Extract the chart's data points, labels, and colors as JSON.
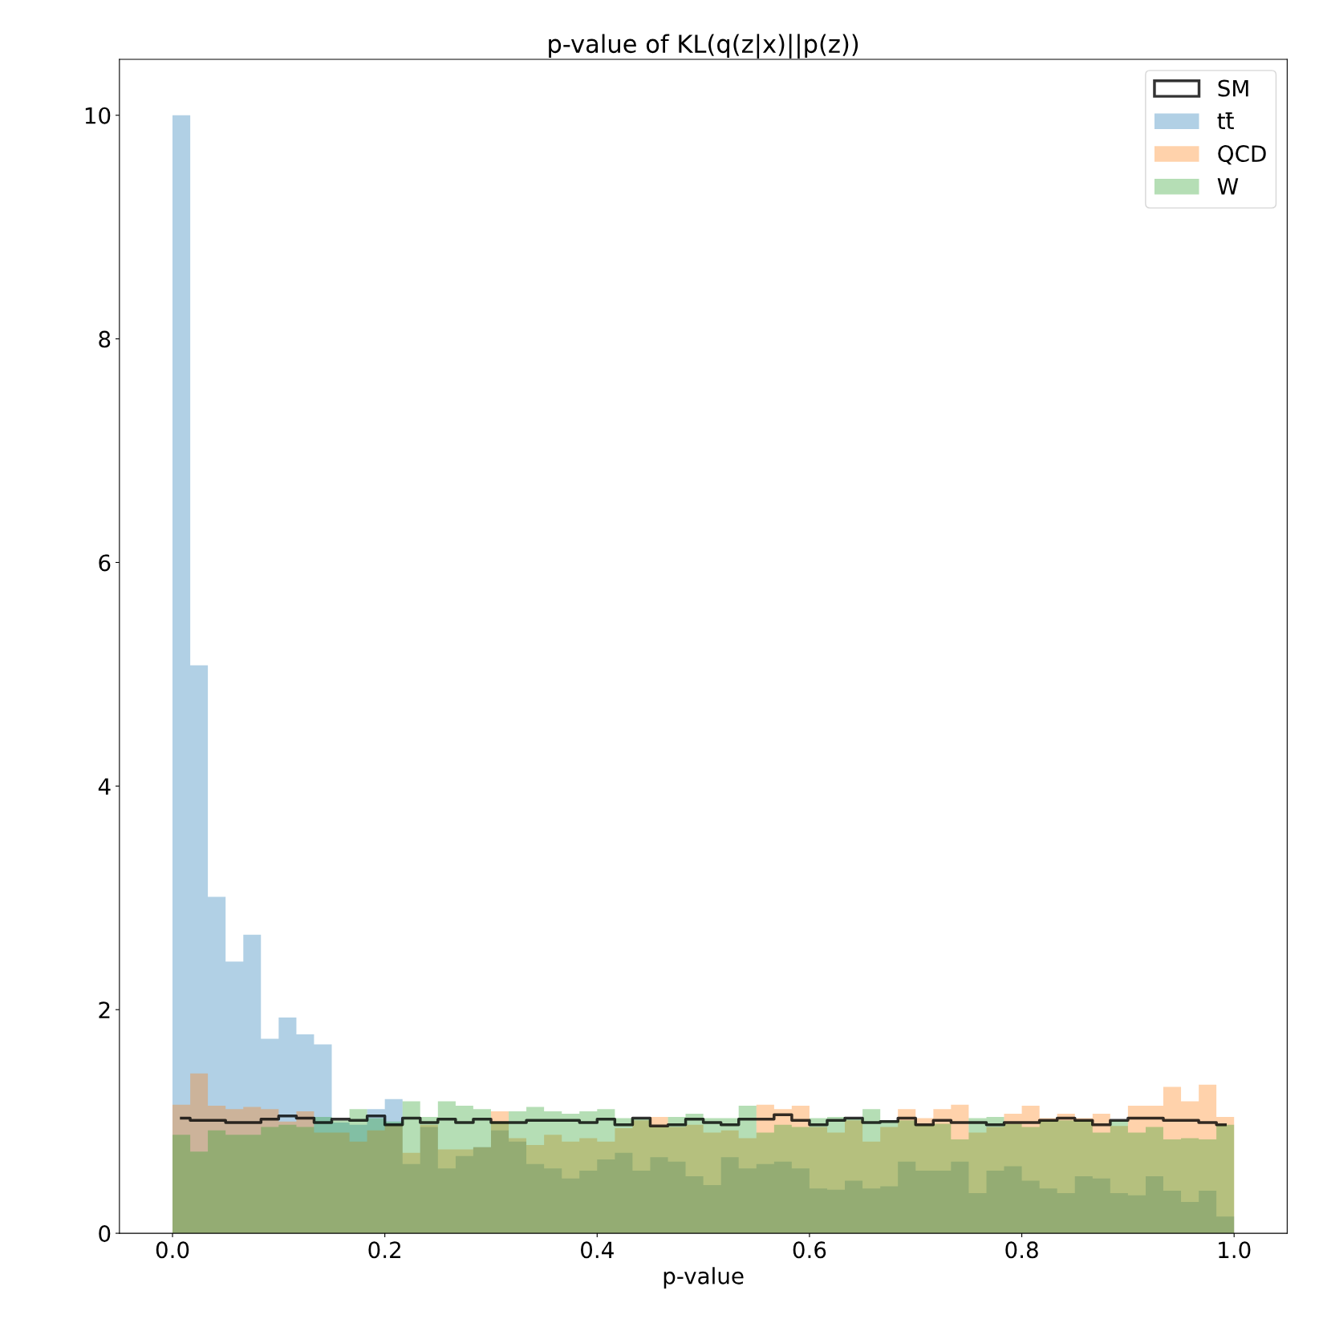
{
  "chart_data": {
    "type": "histogram",
    "title": "p-value of KL(q(z|x)||p(z))",
    "xlabel": "p-value",
    "bins": [
      0,
      0.0167,
      0.0333,
      0.05,
      0.0667,
      0.0833,
      0.1,
      0.1167,
      0.1333,
      0.15,
      0.1667,
      0.1833,
      0.2,
      0.2167,
      0.2333,
      0.25,
      0.2667,
      0.2833,
      0.3,
      0.3167,
      0.3333,
      0.35,
      0.3667,
      0.3833,
      0.4,
      0.4167,
      0.4333,
      0.45,
      0.4667,
      0.4833,
      0.5,
      0.5167,
      0.5333,
      0.55,
      0.5667,
      0.5833,
      0.6,
      0.6167,
      0.6333,
      0.65,
      0.6667,
      0.6833,
      0.7,
      0.7167,
      0.7333,
      0.75,
      0.7667,
      0.7833,
      0.8,
      0.8167,
      0.8333,
      0.85,
      0.8667,
      0.8833,
      0.9,
      0.9167,
      0.9333,
      0.95,
      0.9667,
      0.9833,
      1
    ],
    "series": [
      {
        "name": "SM",
        "type": "step",
        "color": "#000000",
        "x": [
          0.0083,
          0.025,
          0.0417,
          0.0583,
          0.075,
          0.0917,
          0.1083,
          0.125,
          0.1417,
          0.1583,
          0.175,
          0.1917,
          0.2083,
          0.225,
          0.2417,
          0.2583,
          0.275,
          0.2917,
          0.3083,
          0.325,
          0.3417,
          0.3583,
          0.375,
          0.3917,
          0.4083,
          0.425,
          0.4417,
          0.4583,
          0.475,
          0.4917,
          0.5083,
          0.525,
          0.5417,
          0.5583,
          0.575,
          0.5917,
          0.6083,
          0.625,
          0.6417,
          0.6583,
          0.675,
          0.6917,
          0.7083,
          0.725,
          0.7417,
          0.7583,
          0.775,
          0.7917,
          0.8083,
          0.825,
          0.8417,
          0.8583,
          0.875,
          0.8917,
          0.9083,
          0.925,
          0.9417,
          0.9583,
          0.975,
          0.9917
        ],
        "values": [
          1.03,
          1.01,
          1.01,
          0.99,
          0.99,
          1.02,
          1.05,
          1.03,
          0.99,
          1.02,
          1.01,
          1.05,
          0.97,
          1.03,
          0.99,
          1.02,
          0.99,
          1.02,
          0.99,
          0.99,
          1.01,
          1.01,
          1.01,
          0.99,
          1.02,
          0.97,
          1.03,
          0.96,
          0.97,
          1.02,
          0.99,
          0.97,
          1.02,
          1.02,
          1.06,
          1.01,
          0.97,
          1.01,
          1.03,
          0.99,
          1.0,
          1.03,
          0.97,
          1.01,
          0.99,
          0.99,
          0.97,
          0.99,
          0.99,
          1.01,
          1.03,
          1.01,
          0.97,
          1.01,
          1.03,
          1.03,
          1.01,
          1.01,
          0.99,
          0.97
        ]
      },
      {
        "name": "tt̄",
        "color": "#1f77b4",
        "values": [
          10.0,
          5.08,
          3.01,
          2.43,
          2.67,
          1.74,
          1.93,
          1.78,
          1.69,
          0.99,
          0.97,
          1.11,
          1.2,
          0.62,
          0.95,
          0.58,
          0.69,
          0.77,
          0.92,
          0.82,
          0.62,
          0.58,
          0.49,
          0.56,
          0.66,
          0.72,
          0.56,
          0.68,
          0.64,
          0.51,
          0.43,
          0.68,
          0.58,
          0.62,
          0.64,
          0.58,
          0.4,
          0.39,
          0.47,
          0.4,
          0.42,
          0.64,
          0.56,
          0.56,
          0.64,
          0.36,
          0.56,
          0.6,
          0.47,
          0.4,
          0.36,
          0.51,
          0.49,
          0.36,
          0.34,
          0.51,
          0.38,
          0.28,
          0.38,
          0.15
        ]
      },
      {
        "name": "QCD",
        "color": "#ff7f0e",
        "values": [
          1.15,
          1.43,
          1.14,
          1.11,
          1.13,
          1.11,
          1.0,
          1.09,
          0.9,
          0.9,
          0.82,
          0.92,
          0.97,
          0.72,
          0.97,
          0.75,
          0.75,
          0.77,
          1.09,
          0.85,
          0.79,
          0.88,
          0.82,
          0.85,
          0.82,
          0.94,
          1.01,
          1.04,
          0.95,
          0.97,
          0.9,
          0.92,
          0.85,
          1.15,
          1.11,
          1.14,
          0.95,
          0.9,
          1.01,
          0.82,
          0.95,
          1.11,
          1.03,
          1.11,
          1.15,
          0.9,
          0.95,
          1.07,
          1.14,
          1.03,
          1.07,
          1.03,
          1.07,
          0.96,
          1.14,
          1.14,
          1.31,
          1.18,
          1.33,
          1.04
        ]
      },
      {
        "name": "W",
        "color": "#2ca02c",
        "values": [
          0.88,
          0.73,
          0.92,
          0.88,
          0.88,
          0.95,
          0.97,
          0.95,
          1.04,
          1.01,
          1.11,
          1.03,
          1.0,
          1.18,
          1.04,
          1.18,
          1.14,
          1.11,
          1.0,
          1.09,
          1.13,
          1.09,
          1.07,
          1.09,
          1.11,
          1.03,
          1.03,
          0.95,
          1.04,
          1.07,
          1.03,
          1.03,
          1.14,
          0.9,
          0.97,
          0.95,
          1.03,
          1.04,
          1.03,
          1.11,
          1.01,
          1.01,
          0.97,
          0.98,
          0.84,
          1.03,
          1.04,
          0.98,
          0.95,
          1.01,
          1.01,
          1.01,
          0.9,
          1.01,
          0.9,
          0.95,
          0.84,
          0.85,
          0.84,
          0.97
        ]
      }
    ],
    "xlim": [
      -0.05,
      1.05
    ],
    "xticks": [
      {
        "value": 0,
        "label": "0.0"
      },
      0.2,
      0.4,
      0.6,
      0.8,
      {
        "value": 1,
        "label": "1.0"
      }
    ],
    "ylim": [
      0,
      10.5
    ],
    "yticks": [
      0,
      2,
      4,
      6,
      8,
      10
    ],
    "grid": false,
    "legend": "top right"
  }
}
